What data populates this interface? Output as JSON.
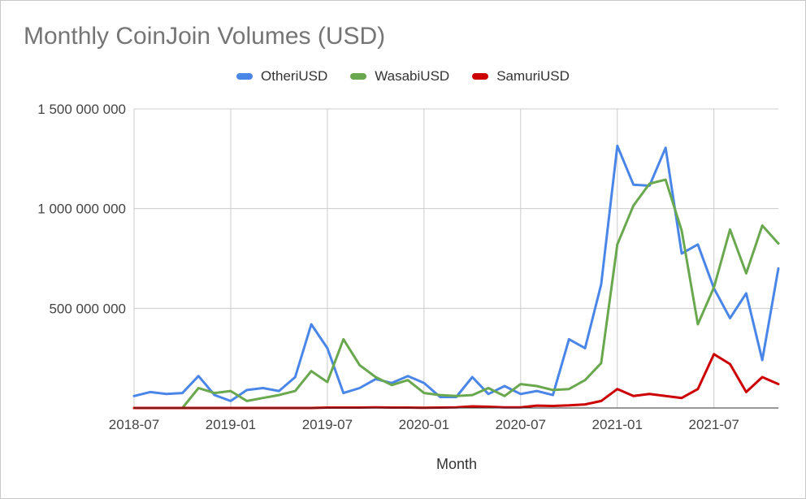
{
  "chart_data": {
    "type": "line",
    "title": "Monthly CoinJoin Volumes (USD)",
    "xlabel": "Month",
    "ylabel": "",
    "ylim": [
      0,
      1500000000
    ],
    "yticks": [
      {
        "value": 500000000,
        "label": "500 000 000"
      },
      {
        "value": 1000000000,
        "label": "1 000 000 000"
      },
      {
        "value": 1500000000,
        "label": "1 500 000 000"
      }
    ],
    "xtick_labels": [
      "2018-07",
      "2019-01",
      "2019-07",
      "2020-01",
      "2020-07",
      "2021-01",
      "2021-07"
    ],
    "x": [
      "2018-07",
      "2018-08",
      "2018-09",
      "2018-10",
      "2018-11",
      "2018-12",
      "2019-01",
      "2019-02",
      "2019-03",
      "2019-04",
      "2019-05",
      "2019-06",
      "2019-07",
      "2019-08",
      "2019-09",
      "2019-10",
      "2019-11",
      "2019-12",
      "2020-01",
      "2020-02",
      "2020-03",
      "2020-04",
      "2020-05",
      "2020-06",
      "2020-07",
      "2020-08",
      "2020-09",
      "2020-10",
      "2020-11",
      "2020-12",
      "2021-01",
      "2021-02",
      "2021-03",
      "2021-04",
      "2021-05",
      "2021-06",
      "2021-07",
      "2021-08",
      "2021-09",
      "2021-10",
      "2021-11"
    ],
    "grid": true,
    "legend": "top",
    "series": [
      {
        "name": "OtheriUSD",
        "color": "#4a86e8",
        "values": [
          60000000,
          80000000,
          70000000,
          75000000,
          160000000,
          65000000,
          35000000,
          90000000,
          100000000,
          85000000,
          155000000,
          420000000,
          300000000,
          75000000,
          100000000,
          145000000,
          125000000,
          160000000,
          125000000,
          55000000,
          55000000,
          155000000,
          70000000,
          110000000,
          70000000,
          85000000,
          65000000,
          345000000,
          300000000,
          620000000,
          1315000000,
          1120000000,
          1115000000,
          1305000000,
          775000000,
          820000000,
          600000000,
          450000000,
          575000000,
          240000000,
          700000000
        ]
      },
      {
        "name": "WasabiUSD",
        "color": "#6aa84f",
        "values": [
          0,
          0,
          0,
          0,
          100000000,
          75000000,
          85000000,
          35000000,
          50000000,
          65000000,
          85000000,
          185000000,
          130000000,
          345000000,
          215000000,
          155000000,
          115000000,
          140000000,
          75000000,
          65000000,
          60000000,
          65000000,
          100000000,
          60000000,
          120000000,
          110000000,
          90000000,
          95000000,
          140000000,
          225000000,
          820000000,
          1015000000,
          1125000000,
          1145000000,
          890000000,
          420000000,
          605000000,
          895000000,
          675000000,
          915000000,
          825000000
        ]
      },
      {
        "name": "SamuriUSD",
        "color": "#cc0000",
        "values": [
          0,
          0,
          0,
          0,
          0,
          0,
          0,
          0,
          0,
          0,
          0,
          0,
          2000000,
          2000000,
          2000000,
          3000000,
          2000000,
          2000000,
          1000000,
          2000000,
          3000000,
          8000000,
          6000000,
          3000000,
          3000000,
          12000000,
          10000000,
          13000000,
          18000000,
          35000000,
          95000000,
          60000000,
          70000000,
          60000000,
          50000000,
          95000000,
          270000000,
          220000000,
          80000000,
          155000000,
          120000000
        ]
      }
    ]
  }
}
